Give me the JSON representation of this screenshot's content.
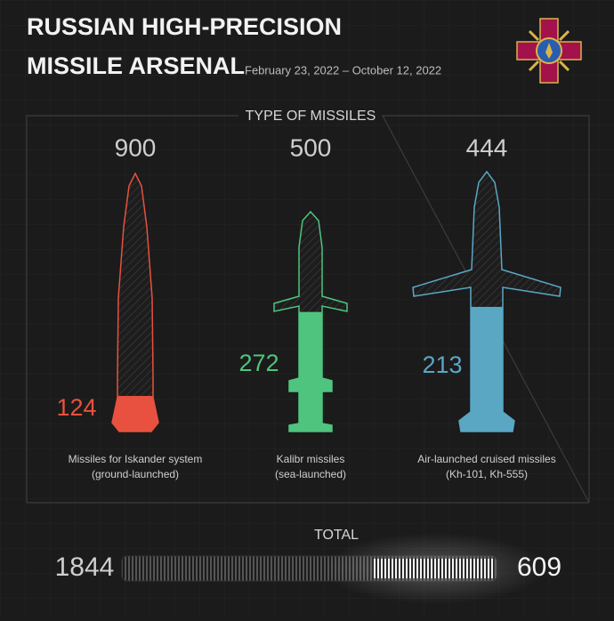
{
  "chart_data": {
    "type": "missile",
    "title": [
      "RUSSIAN HIGH-PRECISION",
      "MISSILE ARSENAL"
    ],
    "subtitle": "February 23, 2022 – October 12, 2022",
    "section_label": "TYPE OF MISSILES",
    "categories": [
      "Missiles for Iskander system (ground-launched)",
      "Kalibr missiles (sea-launched)",
      "Air-launched cruised missiles (Kh-101, Kh-555)"
    ],
    "values": [
      900,
      500,
      444
    ],
    "remaining": [
      124,
      272,
      213
    ],
    "colors": [
      "#e8513f",
      "#4fc47e",
      "#5aa7c4"
    ],
    "total_label": "TOTAL",
    "total": 1844,
    "total_remaining": 609
  }
}
